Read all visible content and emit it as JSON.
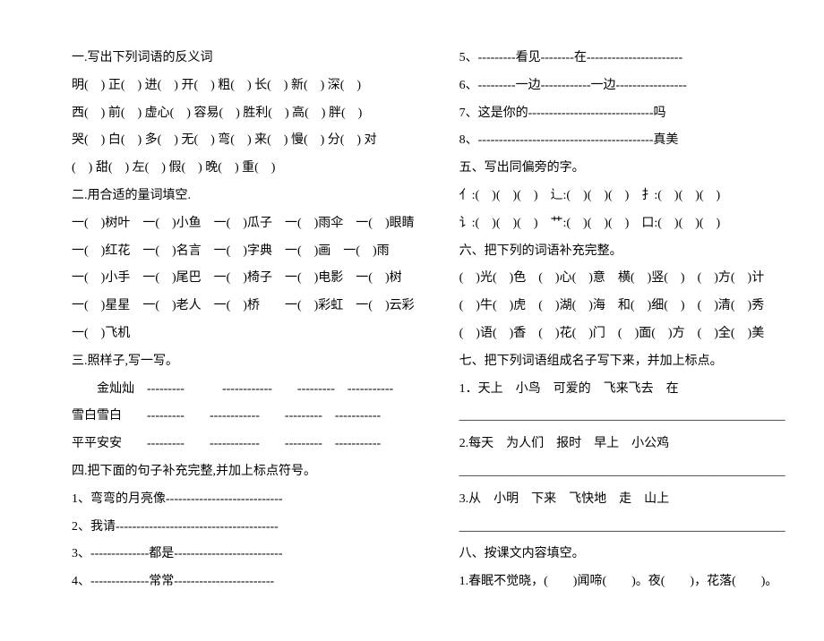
{
  "left": {
    "s1_title": "一.写出下列词语的反义词",
    "s1_l1": "明(　) 正(　) 进(　) 开(　) 粗(　) 长(　) 新(　) 深(　)",
    "s1_l2": "西(　) 前(　) 虚心(　) 容易(　) 胜利(　) 高(　) 胖(　)",
    "s1_l3": "哭(　) 白(　) 多(　) 无(　) 弯(　) 来(　) 慢(　) 分(　) 对",
    "s1_l4": "(　) 甜(　) 左(　) 假(　) 晚(　) 重(　)",
    "s2_title": "二.用合适的量词填空.",
    "s2_l1": "一(　)树叶　一(　)小鱼　一(　)瓜子　一(　)雨伞　一(　)眼睛",
    "s2_l2": "一(　)红花　一(　)名言　一(　)字典　一(　)画　一(　)雨",
    "s2_l3": "一(　)小手　一(　)尾巴　一(　)椅子　一(　)电影　一(　)树",
    "s2_l4": "一(　)星星　一(　)老人　一(　)桥　　一(　)彩虹　一(　)云彩",
    "s2_l5": "一(　)飞机",
    "s3_title": "三.照样子,写一写。",
    "s3_l1": "　　金灿灿　---------　　　------------　　---------　-----------",
    "s3_l2": "雪白雪白　　---------　　------------　　---------　-----------",
    "s3_l3": "平平安安　　---------　　------------　　---------　-----------",
    "s4_title": "四.把下面的句子补充完整,并加上标点符号。",
    "s4_l1": "1、弯弯的月亮像----------------------------",
    "s4_l2": "2、我请---------------------------------------",
    "s4_l3": "3、--------------都是--------------------------",
    "s4_l4": "4、--------------常常------------------------"
  },
  "right": {
    "s4_l5": "5、---------看见--------在-----------------------",
    "s4_l6": "6、---------一边------------一边-----------------",
    "s4_l7": "7、这是你的------------------------------吗",
    "s4_l8": "8、------------------------------------------真美",
    "s5_title": "五、写出同偏旁的字。",
    "s5_l1": "亻:(　)(　)(　)　辶:(　)(　)(　)　扌:(　)(　)(　)",
    "s5_l2": "讠:(　)(　)(　)　艹:(　)(　)(　)　口:(　)(　)(　)",
    "s6_title": "六、把下列的词语补充完整。",
    "s6_l1": "(　)光(　)色　(　)心(　)意　横(　)竖(　)　(　)方(　)计",
    "s6_l2": "(　)牛(　)虎　(　)湖(　)海　和(　)细(　)　(　)清(　)秀",
    "s6_l3": "(　)语(　)香　(　)花(　)门　(　)面(　)方　(　)全(　)美",
    "s7_title": "七、把下列词语组成名子写下来，并加上标点。",
    "s7_l1": "1．天上　小鸟　可爱的　飞来飞去　在",
    "blank1": "____________________________________________________",
    "s7_l2": "2.每天　为人们　报时　早上　小公鸡",
    "blank2": "____________________________________________________",
    "s7_l3": "3.从　小明　下来　飞快地　走　山上",
    "blank3": "____________________________________________________",
    "s8_title": "八、按课文内容填空。",
    "s8_l1": "1.春眠不觉晓，(　　)闻啼(　　)。夜(　　)，花落(　　)。"
  }
}
